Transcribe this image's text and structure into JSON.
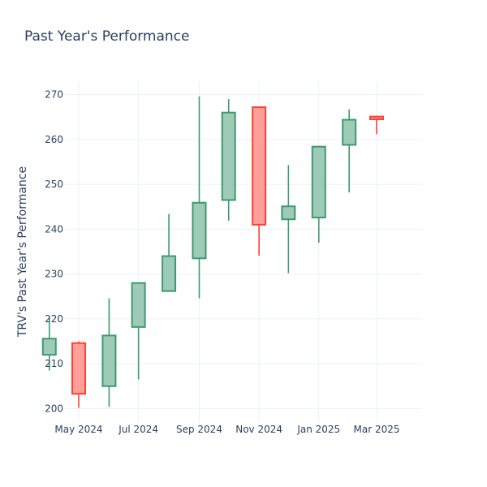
{
  "chart_data": {
    "type": "candlestick",
    "title": "Past Year's Performance",
    "xlabel": "",
    "ylabel": "TRV's Past Year's Performance",
    "ylim": [
      197,
      273
    ],
    "yticks": [
      200,
      210,
      220,
      230,
      240,
      250,
      260,
      270
    ],
    "xticks": [
      "May 2024",
      "Jul 2024",
      "Sep 2024",
      "Nov 2024",
      "Jan 2025",
      "Mar 2025"
    ],
    "grid": true,
    "colors": {
      "up": "#3d9970",
      "up_fill": "#9ecbb7",
      "down": "#ff4136",
      "down_fill": "#ff9f9a"
    },
    "candles": [
      {
        "month": "2024-04",
        "open": 212.0,
        "high": 220.4,
        "low": 208.5,
        "close": 215.6
      },
      {
        "month": "2024-05",
        "open": 214.6,
        "high": 215.0,
        "low": 200.2,
        "close": 203.3
      },
      {
        "month": "2024-06",
        "open": 205.0,
        "high": 224.6,
        "low": 200.4,
        "close": 216.3
      },
      {
        "month": "2024-07",
        "open": 218.2,
        "high": 228.0,
        "low": 206.5,
        "close": 228.0
      },
      {
        "month": "2024-08",
        "open": 226.2,
        "high": 243.4,
        "low": 226.2,
        "close": 234.0
      },
      {
        "month": "2024-09",
        "open": 233.5,
        "high": 269.6,
        "low": 224.6,
        "close": 245.9
      },
      {
        "month": "2024-10",
        "open": 246.5,
        "high": 269.0,
        "low": 241.9,
        "close": 266.0
      },
      {
        "month": "2024-11",
        "open": 267.2,
        "high": 267.2,
        "low": 234.1,
        "close": 241.0
      },
      {
        "month": "2024-12",
        "open": 242.2,
        "high": 254.3,
        "low": 230.2,
        "close": 245.1
      },
      {
        "month": "2025-01",
        "open": 242.6,
        "high": 258.6,
        "low": 237.0,
        "close": 258.4
      },
      {
        "month": "2025-02",
        "open": 258.8,
        "high": 266.7,
        "low": 248.2,
        "close": 264.4
      },
      {
        "month": "2025-03",
        "open": 265.1,
        "high": 265.3,
        "low": 261.2,
        "close": 264.5
      }
    ]
  }
}
